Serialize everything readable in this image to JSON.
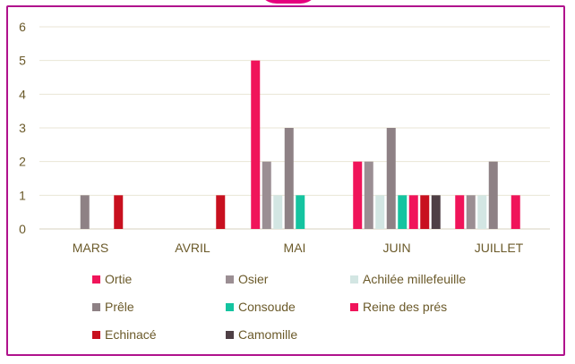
{
  "chart_data": {
    "type": "bar",
    "categories": [
      "MARS",
      "AVRIL",
      "MAI",
      "JUIN",
      "JUILLET"
    ],
    "ylim": [
      0,
      6
    ],
    "yticks": [
      "0",
      "1",
      "2",
      "3",
      "4",
      "5",
      "6"
    ],
    "grid": true,
    "legend_position": "bottom",
    "series": [
      {
        "name": "Ortie",
        "color": "#f0145a",
        "values": [
          0,
          0,
          5,
          2,
          1
        ]
      },
      {
        "name": "Osier",
        "color": "#9b8e93",
        "values": [
          0,
          0,
          2,
          2,
          1
        ]
      },
      {
        "name": "Achilée millefeuille",
        "color": "#d3e6e3",
        "values": [
          0,
          0,
          1,
          1,
          1
        ]
      },
      {
        "name": "Prêle",
        "color": "#8e8185",
        "values": [
          1,
          0,
          3,
          3,
          2
        ]
      },
      {
        "name": "Consoude",
        "color": "#14c4a0",
        "values": [
          0,
          0,
          1,
          1,
          0
        ]
      },
      {
        "name": "Reine des prés",
        "color": "#f0145a",
        "values": [
          0,
          0,
          0,
          1,
          1
        ]
      },
      {
        "name": "Echinacé",
        "color": "#c8101f",
        "values": [
          1,
          1,
          0,
          1,
          0
        ]
      },
      {
        "name": "Camomille",
        "color": "#4e3f45",
        "values": [
          0,
          0,
          0,
          1,
          0
        ]
      }
    ]
  }
}
